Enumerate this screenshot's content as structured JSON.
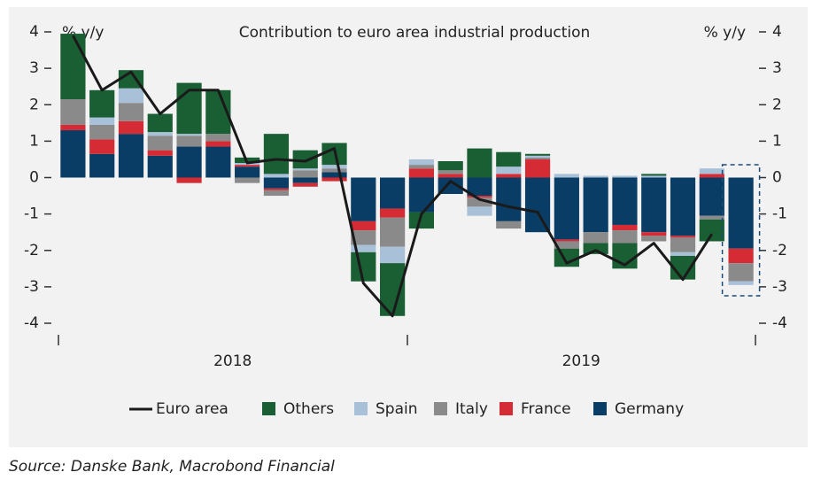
{
  "chart_data": {
    "type": "bar",
    "stacked": true,
    "title": "Contribution to euro area industrial production",
    "y_label": "% y/y",
    "y2_label": "% y/y",
    "source": "Source: Danske Bank, Macrobond Financial",
    "categories": [
      null,
      null,
      null,
      null,
      null,
      null,
      null,
      null,
      null,
      null,
      null,
      null,
      null,
      null,
      null,
      null,
      null,
      null,
      null,
      null,
      null,
      null,
      null,
      null
    ],
    "year_labels": [
      "2018",
      "2019"
    ],
    "ylim": [
      -4,
      4
    ],
    "yticks": [
      -4,
      -3,
      -2,
      -1,
      0,
      1,
      2,
      3,
      4
    ],
    "y2lim": [
      -4,
      4
    ],
    "y2ticks": [
      -4,
      -3,
      -2,
      -1,
      0,
      1,
      2,
      3,
      4
    ],
    "series": [
      {
        "name": "Euro area",
        "type": "line",
        "color": "#1a1a1a",
        "values": [
          3.9,
          2.4,
          2.9,
          1.75,
          2.4,
          2.4,
          0.4,
          0.5,
          0.45,
          0.8,
          -2.9,
          -3.8,
          -1.0,
          -0.1,
          -0.6,
          -0.8,
          -0.95,
          -2.35,
          -2.0,
          -2.4,
          -1.8,
          -2.8,
          -1.55,
          null
        ]
      },
      {
        "name": "Others",
        "color": "#1a5e34",
        "values": [
          1.8,
          0.75,
          0.5,
          0.5,
          1.4,
          1.2,
          0.15,
          1.1,
          0.5,
          0.6,
          -0.8,
          -1.45,
          -0.45,
          0.25,
          0.8,
          0.4,
          0.05,
          -0.5,
          -0.3,
          -0.7,
          0.05,
          -0.65,
          -0.6,
          0
        ]
      },
      {
        "name": "Spain",
        "color": "#a8c0d8",
        "values": [
          0,
          0.2,
          0.4,
          0.1,
          0.05,
          0,
          0.05,
          0.1,
          0.05,
          0.1,
          -0.2,
          -0.45,
          0.15,
          0,
          -0.25,
          0.2,
          0.05,
          0.1,
          0.05,
          0.05,
          0.05,
          -0.1,
          0.15,
          -0.1
        ]
      },
      {
        "name": "Italy",
        "color": "#8a8a8a",
        "values": [
          0.7,
          0.4,
          0.5,
          0.4,
          0.3,
          0.2,
          -0.15,
          -0.15,
          0.2,
          0.1,
          -0.4,
          -0.8,
          0.1,
          0.1,
          -0.25,
          -0.2,
          0.05,
          -0.2,
          -0.3,
          -0.35,
          -0.15,
          -0.4,
          -0.1,
          -0.5
        ]
      },
      {
        "name": "France",
        "color": "#d52b35",
        "values": [
          0.15,
          0.4,
          0.35,
          0.15,
          -0.15,
          0.15,
          0.05,
          -0.05,
          -0.1,
          -0.1,
          -0.25,
          -0.25,
          0.25,
          0.1,
          -0.05,
          0.1,
          0.5,
          -0.05,
          0,
          -0.15,
          -0.1,
          -0.05,
          0.1,
          -0.4
        ]
      },
      {
        "name": "Germany",
        "color": "#0a3d66",
        "values": [
          1.3,
          0.65,
          1.2,
          0.6,
          0.85,
          0.85,
          0.3,
          -0.3,
          -0.15,
          0.15,
          -1.2,
          -0.85,
          -0.95,
          -0.45,
          -0.5,
          -1.2,
          -1.5,
          -1.7,
          -1.5,
          -1.3,
          -1.5,
          -1.6,
          -1.05,
          -1.95
        ]
      }
    ]
  }
}
